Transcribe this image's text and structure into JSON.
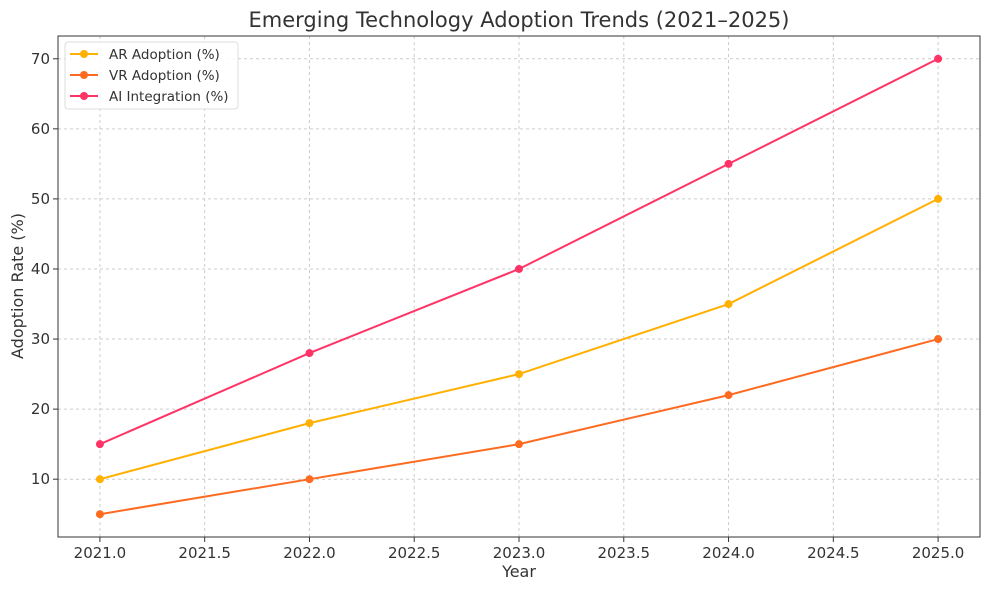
{
  "chart_data": {
    "type": "line",
    "title": "Emerging Technology Adoption Trends (2021–2025)",
    "xlabel": "Year",
    "ylabel": "Adoption Rate (%)",
    "x": [
      2021,
      2022,
      2023,
      2024,
      2025
    ],
    "xlim": [
      2020.8,
      2025.2
    ],
    "ylim": [
      1.75,
      73.25
    ],
    "xticks": [
      "2021.0",
      "2021.5",
      "2022.0",
      "2022.5",
      "2023.0",
      "2023.5",
      "2024.0",
      "2024.5",
      "2025.0"
    ],
    "yticks": [
      "10",
      "20",
      "30",
      "40",
      "50",
      "60",
      "70"
    ],
    "grid": true,
    "grid_style": "dashed",
    "legend_position": "top-left",
    "series": [
      {
        "name": "AR Adoption (%)",
        "values": [
          10,
          18,
          25,
          35,
          50
        ],
        "color": "#FFB000"
      },
      {
        "name": "VR Adoption (%)",
        "values": [
          5,
          10,
          15,
          22,
          30
        ],
        "color": "#FE6A20"
      },
      {
        "name": "AI Integration (%)",
        "values": [
          15,
          28,
          40,
          55,
          70
        ],
        "color": "#FF3366"
      }
    ]
  }
}
